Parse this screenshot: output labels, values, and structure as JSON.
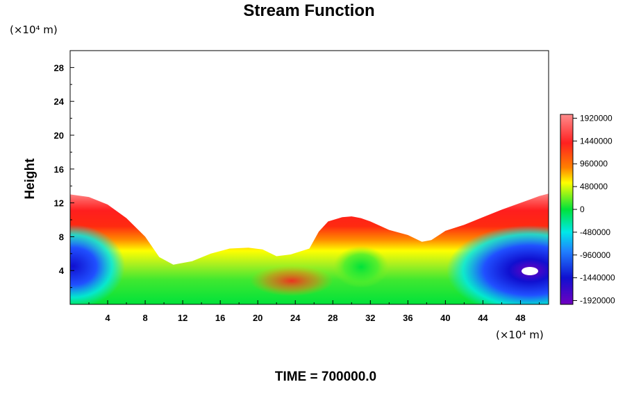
{
  "chart_data": {
    "type": "heatmap",
    "title": "Stream Function",
    "ylabel": "Height",
    "xlabel": "",
    "y_unit": "(×10⁴ m)",
    "x_unit": "(×10⁴ m)",
    "xlim": [
      0,
      51
    ],
    "ylim": [
      0,
      30
    ],
    "x_ticks": [
      4,
      8,
      12,
      16,
      20,
      24,
      28,
      32,
      36,
      40,
      44,
      48
    ],
    "y_ticks": [
      4,
      8,
      12,
      16,
      20,
      24,
      28
    ],
    "grid": false,
    "footer": "TIME = 700000.0",
    "colorbar": {
      "placement": "right",
      "range": [
        -2000000,
        2000000
      ],
      "labels": [
        1920000,
        1440000,
        960000,
        480000,
        0,
        -480000,
        -960000,
        -1440000,
        -1920000
      ],
      "colors": {
        "max": "#ff8c8c",
        "high": "#ff1e1e",
        "mid_high": "#ffff00",
        "zero": "#00e23a",
        "mid_low": "#00e8e8",
        "low": "#1010d0",
        "min": "#7000c0"
      }
    },
    "field_top_profile": {
      "x": [
        0,
        2,
        4,
        6,
        8,
        9.5,
        11,
        13,
        15,
        17,
        19,
        20.5,
        22,
        23.5,
        25.5,
        26.5,
        27.5,
        29,
        30,
        31,
        32,
        34,
        36,
        37.5,
        38.5,
        40,
        42,
        44,
        46,
        48,
        50,
        51
      ],
      "y": [
        13.0,
        12.7,
        11.8,
        10.2,
        8.0,
        5.6,
        4.7,
        5.1,
        6.0,
        6.6,
        6.7,
        6.5,
        5.7,
        5.9,
        6.6,
        8.6,
        9.8,
        10.3,
        10.4,
        10.2,
        9.8,
        8.8,
        8.2,
        7.4,
        7.6,
        8.7,
        9.4,
        10.3,
        11.2,
        12.0,
        12.8,
        13.1
      ]
    },
    "features": [
      {
        "label": "min",
        "x": 1.0,
        "y": 4.2,
        "value": -1900000
      },
      {
        "label": "min",
        "x": 48.5,
        "y": 3.8,
        "value": -2000000
      },
      {
        "label": "max",
        "x": 23.5,
        "y": 3.0,
        "value": 1400000
      }
    ]
  }
}
